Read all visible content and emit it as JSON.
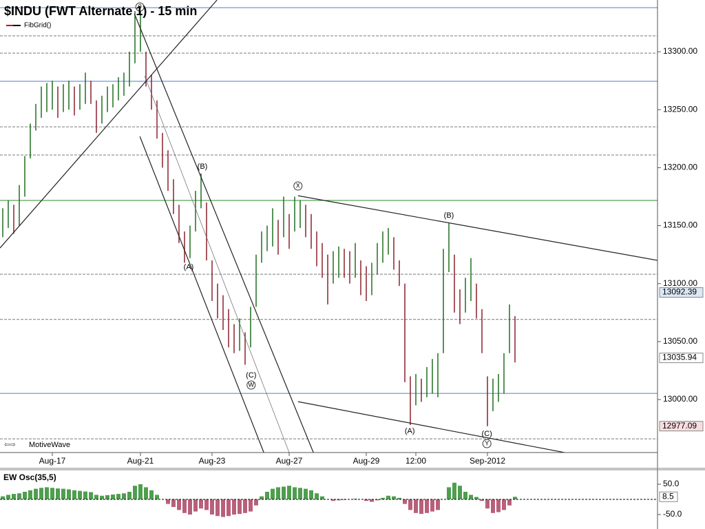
{
  "chart_data": [
    {
      "type": "ohlc",
      "title": "$INDU (FWT Alternate 1) - 15 min",
      "indicator": "FibGrid()",
      "watermark": "MotiveWave",
      "categories": [
        null,
        null,
        null,
        null,
        null,
        null,
        null,
        null,
        null,
        "Aug-17",
        null,
        null,
        null,
        null,
        null,
        null,
        null,
        null,
        null,
        null,
        null,
        null,
        null,
        null,
        null,
        "Aug-21",
        null,
        null,
        null,
        null,
        null,
        null,
        null,
        null,
        null,
        null,
        null,
        null,
        "Aug-23",
        null,
        null,
        null,
        null,
        null,
        null,
        null,
        null,
        null,
        null,
        null,
        null,
        null,
        "Aug-27",
        null,
        null,
        null,
        null,
        null,
        null,
        null,
        null,
        null,
        null,
        null,
        null,
        null,
        "Aug-29",
        null,
        null,
        null,
        null,
        null,
        null,
        null,
        null,
        "12:00",
        null,
        null,
        null,
        null,
        null,
        null,
        null,
        null,
        null,
        null,
        null,
        null,
        "Sep-2012",
        null,
        null,
        null,
        null,
        null
      ],
      "high": [
        13165,
        13172,
        13168,
        13185,
        13210,
        13238,
        13255,
        13270,
        13273,
        13275,
        13270,
        13272,
        13275,
        13270,
        13272,
        13282,
        13275,
        13258,
        13262,
        13270,
        13272,
        13278,
        13282,
        13300,
        13335,
        13338,
        13300,
        13280,
        13258,
        13230,
        13215,
        13190,
        13168,
        13145,
        13150,
        13180,
        13195,
        13170,
        13120,
        13100,
        13090,
        13078,
        13065,
        13070,
        13058,
        13080,
        13125,
        13145,
        13150,
        13165,
        13155,
        13175,
        13160,
        13175,
        13172,
        13168,
        13160,
        13145,
        13135,
        13125,
        13128,
        13132,
        13130,
        13128,
        13135,
        13120,
        13115,
        13118,
        13135,
        13145,
        13148,
        13140,
        13120,
        13100,
        13020,
        13022,
        13018,
        13028,
        13035,
        13040,
        13130,
        13152,
        13125,
        13095,
        13105,
        13122,
        13100,
        13078,
        13020,
        13018,
        13022,
        13040,
        13082,
        13072
      ],
      "low": [
        13140,
        13148,
        13143,
        13150,
        13175,
        13208,
        13232,
        13243,
        13248,
        13250,
        13243,
        13248,
        13250,
        13245,
        13250,
        13255,
        13255,
        13230,
        13238,
        13248,
        13252,
        13258,
        13262,
        13270,
        13290,
        13300,
        13270,
        13250,
        13225,
        13200,
        13180,
        13160,
        13135,
        13118,
        13122,
        13145,
        13165,
        13120,
        13085,
        13070,
        13060,
        13045,
        13040,
        13042,
        13030,
        13045,
        13080,
        13118,
        13128,
        13132,
        13125,
        13140,
        13130,
        13145,
        13148,
        13140,
        13130,
        13115,
        13105,
        13082,
        13100,
        13105,
        13105,
        13100,
        13105,
        13090,
        13085,
        13090,
        13108,
        13118,
        13125,
        13112,
        13098,
        13015,
        12978,
        12995,
        12998,
        13002,
        13005,
        13002,
        13040,
        13110,
        13075,
        13065,
        13075,
        13085,
        13070,
        13040,
        12977,
        12990,
        12998,
        13005,
        13040,
        13032
      ],
      "up_color": "#1d6e1d",
      "down_color": "#8a1f2a",
      "ylim": [
        12954.3,
        13344.6
      ],
      "yticks": [
        {
          "value": 13000,
          "label": "13000.00"
        },
        {
          "value": 13050,
          "label": "13050.00"
        },
        {
          "value": 13100,
          "label": "13100.00"
        },
        {
          "value": 13150,
          "label": "13150.00"
        },
        {
          "value": 13200,
          "label": "13200.00"
        },
        {
          "value": 13250,
          "label": "13250.00"
        },
        {
          "value": 13300,
          "label": "13300.00"
        }
      ],
      "levels": [
        {
          "price": 13338.0,
          "color": "#4a7fd0",
          "dashed": false
        },
        {
          "price": 13313.7,
          "color": "#777777",
          "dashed": true
        },
        {
          "price": 13298.8,
          "color": "#777777",
          "dashed": true
        },
        {
          "price": 13274.5,
          "color": "#4a7fd0",
          "dashed": false
        },
        {
          "price": 13235.2,
          "color": "#777777",
          "dashed": true
        },
        {
          "price": 13210.9,
          "color": "#777777",
          "dashed": true
        },
        {
          "price": 13171.7,
          "color": "#2e8b2e",
          "dashed": false
        },
        {
          "price": 13108.1,
          "color": "#777777",
          "dashed": true
        },
        {
          "price": 13069.1,
          "color": "#777777",
          "dashed": true
        },
        {
          "price": 13005.3,
          "color": "#4a7fd0",
          "dashed": false
        },
        {
          "price": 12966.1,
          "color": "#777777",
          "dashed": true
        }
      ],
      "trendlines": [
        {
          "from": [
            23.9,
            13332.7
          ],
          "to": [
            56.4,
            12954.3
          ]
        },
        {
          "from": [
            24.9,
            13226.9
          ],
          "to": [
            47.4,
            12954.3
          ]
        },
        {
          "from": [
            25.75,
            13279.2
          ],
          "to": [
            52.0,
            12954.3
          ]
        },
        {
          "from": [
            -0.5,
            13130.7
          ],
          "to": [
            38.9,
            13344.6
          ]
        },
        {
          "from": [
            53.6,
            13175.8
          ],
          "to": [
            118.9,
            13120.0
          ]
        },
        {
          "from": [
            53.6,
            12998.2
          ],
          "to": [
            102.0,
            12954.3
          ]
        }
      ],
      "wave_labels": [
        {
          "label": "0",
          "bar": 24.9,
          "price": 13338.6,
          "circled": true
        },
        {
          "label": "(B)",
          "bar": 36.25,
          "price": 13200.8,
          "circled": false
        },
        {
          "label": "(A)",
          "bar": 33.75,
          "price": 13114.0,
          "circled": false
        },
        {
          "label": "(C)",
          "bar": 45.1,
          "price": 13020.8,
          "circled": false
        },
        {
          "label": "W",
          "bar": 45.1,
          "price": 13012.5,
          "circled": true
        },
        {
          "label": "X",
          "bar": 53.6,
          "price": 13184.2,
          "circled": true
        },
        {
          "label": "(B)",
          "bar": 81.0,
          "price": 13158.6,
          "circled": false
        },
        {
          "label": "(A)",
          "bar": 73.9,
          "price": 12972.7,
          "circled": false
        },
        {
          "label": "(C)",
          "bar": 87.9,
          "price": 12970.3,
          "circled": false
        },
        {
          "label": "Y",
          "bar": 87.9,
          "price": 12962.0,
          "circled": true
        }
      ],
      "price_tags": [
        {
          "value": 13092.39,
          "color": "#dbe8f5"
        },
        {
          "value": 13035.94,
          "color": "#ffffff"
        },
        {
          "value": 12977.09,
          "color": "#f8dde0"
        }
      ]
    },
    {
      "type": "bar",
      "title": "EW Osc(35,5)",
      "values": [
        10,
        15,
        18,
        20,
        25,
        30,
        35,
        38,
        40,
        38,
        36,
        35,
        33,
        30,
        28,
        26,
        24,
        15,
        12,
        14,
        16,
        18,
        20,
        25,
        45,
        50,
        40,
        30,
        15,
        0,
        -15,
        -25,
        -35,
        -45,
        -50,
        -40,
        -30,
        -35,
        -50,
        -55,
        -58,
        -55,
        -50,
        -48,
        -45,
        -40,
        -20,
        10,
        25,
        35,
        40,
        42,
        45,
        40,
        38,
        35,
        30,
        20,
        10,
        0,
        -5,
        -3,
        -2,
        0,
        2,
        0,
        -5,
        -8,
        -3,
        5,
        12,
        10,
        5,
        -15,
        -35,
        -45,
        -48,
        -45,
        -40,
        -35,
        0,
        40,
        55,
        45,
        25,
        15,
        8,
        -5,
        -30,
        -45,
        -42,
        -35,
        -20,
        8.5
      ],
      "pos_color": "#4f9e4f",
      "neg_color": "#b8607a",
      "ylim": [
        -97.7,
        97.7
      ],
      "yticks": [
        {
          "value": 50,
          "label": "50.0"
        },
        {
          "value": -50,
          "label": "-50.0"
        }
      ],
      "last_value": 8.5
    }
  ]
}
